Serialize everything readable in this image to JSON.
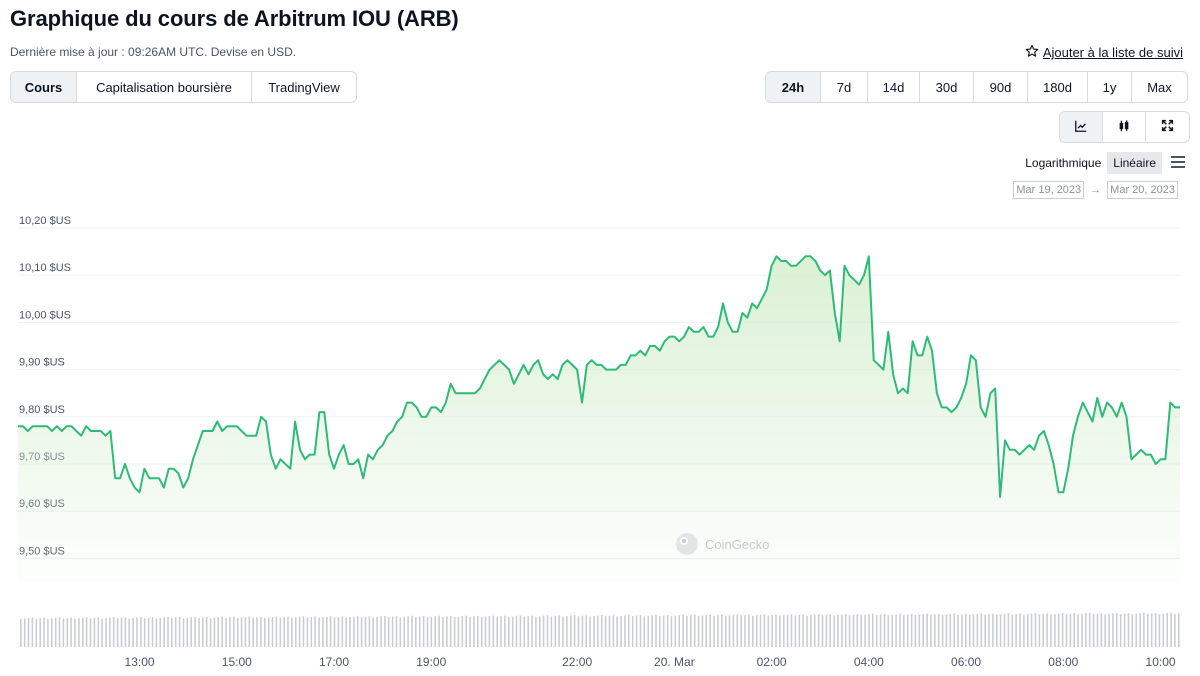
{
  "header": {
    "title": "Graphique du cours de Arbitrum IOU (ARB)",
    "subtitle": "Dernière mise à jour : 09:26AM UTC. Devise en USD.",
    "watchlist_label": "Ajouter à la liste de suivi",
    "watchlist_icon": "star-outline-icon"
  },
  "chart_tabs": [
    {
      "label": "Cours",
      "active": true
    },
    {
      "label": "Capitalisation boursière",
      "active": false
    },
    {
      "label": "TradingView",
      "active": false
    }
  ],
  "range_tabs": [
    {
      "label": "24h",
      "active": true
    },
    {
      "label": "7d",
      "active": false
    },
    {
      "label": "14d",
      "active": false
    },
    {
      "label": "30d",
      "active": false
    },
    {
      "label": "90d",
      "active": false
    },
    {
      "label": "180d",
      "active": false
    },
    {
      "label": "1y",
      "active": false
    },
    {
      "label": "Max",
      "active": false
    }
  ],
  "view_buttons": [
    {
      "icon": "line-chart-icon",
      "active": true
    },
    {
      "icon": "candlestick-icon",
      "active": false
    },
    {
      "icon": "expand-icon",
      "active": false
    }
  ],
  "scale": {
    "log_label": "Logarithmique",
    "linear_label": "Linéaire",
    "active": "linear",
    "menu_icon": "hamburger-menu-icon"
  },
  "date_range": {
    "from": "Mar 19, 2023",
    "arrow": "→",
    "to": "Mar 20, 2023"
  },
  "colors": {
    "line": "#2fba7a",
    "fill_top": "#d9f0d2",
    "volume": "#c9ced6",
    "grid": "#eef0f3"
  },
  "chart_data": {
    "type": "area",
    "watermark": "CoinGecko",
    "yticks": [
      "10,20 $US",
      "10,10 $US",
      "10,00 $US",
      "9,90 $US",
      "9,80 $US",
      "9,70 $US",
      "9,60 $US",
      "9,50 $US"
    ],
    "yvalues": [
      10.2,
      10.1,
      10.0,
      9.9,
      9.8,
      9.7,
      9.6,
      9.5
    ],
    "xticks": [
      {
        "label": "13:00",
        "h": 1.0
      },
      {
        "label": "15:00",
        "h": 3.0
      },
      {
        "label": "17:00",
        "h": 5.0
      },
      {
        "label": "19:00",
        "h": 7.0
      },
      {
        "label": "22:00",
        "h": 10.0
      },
      {
        "label": "20. Mar",
        "h": 12.0
      },
      {
        "label": "02:00",
        "h": 14.0
      },
      {
        "label": "04:00",
        "h": 16.0
      },
      {
        "label": "06:00",
        "h": 18.0
      },
      {
        "label": "08:00",
        "h": 20.0
      },
      {
        "label": "10:00",
        "h": 22.0
      }
    ],
    "xrange_hours": [
      -1.5,
      22.4
    ],
    "yrange": [
      9.45,
      10.2
    ],
    "price_hours": [
      -1.5,
      -1.4,
      -1.3,
      -1.2,
      -1.1,
      -1.0,
      -0.9,
      -0.8,
      -0.7,
      -0.6,
      -0.5,
      -0.4,
      -0.3,
      -0.2,
      -0.1,
      0.0,
      0.1,
      0.2,
      0.3,
      0.4,
      0.5,
      0.6,
      0.7,
      0.8,
      0.9,
      1.0,
      1.1,
      1.2,
      1.3,
      1.4,
      1.5,
      1.6,
      1.7,
      1.8,
      1.9,
      2.0,
      2.1,
      2.2,
      2.3,
      2.4,
      2.5,
      2.6,
      2.7,
      2.8,
      2.9,
      3.0,
      3.1,
      3.2,
      3.3,
      3.4,
      3.5,
      3.6,
      3.7,
      3.8,
      3.9,
      4.0,
      4.1,
      4.2,
      4.3,
      4.4,
      4.5,
      4.6,
      4.7,
      4.8,
      4.9,
      5.0,
      5.1,
      5.2,
      5.3,
      5.4,
      5.5,
      5.6,
      5.7,
      5.8,
      5.9,
      6.0,
      6.1,
      6.2,
      6.3,
      6.4,
      6.5,
      6.6,
      6.7,
      6.8,
      6.9,
      7.0,
      7.1,
      7.2,
      7.3,
      7.4,
      7.5,
      7.6,
      7.7,
      7.8,
      7.9,
      8.0,
      8.1,
      8.2,
      8.3,
      8.4,
      8.5,
      8.6,
      8.7,
      8.8,
      8.9,
      9.0,
      9.1,
      9.2,
      9.3,
      9.4,
      9.5,
      9.6,
      9.7,
      9.8,
      9.9,
      10.0,
      10.1,
      10.2,
      10.3,
      10.4,
      10.5,
      10.6,
      10.7,
      10.8,
      10.9,
      11.0,
      11.1,
      11.2,
      11.3,
      11.4,
      11.5,
      11.6,
      11.7,
      11.8,
      11.9,
      12.0,
      12.1,
      12.2,
      12.3,
      12.4,
      12.5,
      12.6,
      12.7,
      12.8,
      12.9,
      13.0,
      13.1,
      13.2,
      13.3,
      13.4,
      13.5,
      13.6,
      13.7,
      13.8,
      13.9,
      14.0,
      14.1,
      14.2,
      14.3,
      14.4,
      14.5,
      14.6,
      14.7,
      14.8,
      14.9,
      15.0,
      15.1,
      15.2,
      15.3,
      15.4,
      15.5,
      15.6,
      15.7,
      15.8,
      15.9,
      16.0,
      16.1,
      16.2,
      16.3,
      16.4,
      16.5,
      16.6,
      16.7,
      16.8,
      16.9,
      17.0,
      17.1,
      17.2,
      17.3,
      17.4,
      17.5,
      17.6,
      17.7,
      17.8,
      17.9,
      18.0,
      18.1,
      18.2,
      18.3,
      18.4,
      18.5,
      18.6,
      18.7,
      18.8,
      18.9,
      19.0,
      19.1,
      19.2,
      19.3,
      19.4,
      19.5,
      19.6,
      19.7,
      19.8,
      19.9,
      20.0,
      20.1,
      20.2,
      20.3,
      20.4,
      20.5,
      20.6,
      20.7,
      20.8,
      20.9,
      21.0,
      21.1,
      21.2,
      21.3,
      21.4,
      21.5,
      21.6,
      21.7,
      21.8,
      21.9,
      22.0,
      22.1,
      22.2,
      22.3,
      22.4
    ],
    "price_values": [
      9.78,
      9.78,
      9.77,
      9.78,
      9.78,
      9.78,
      9.78,
      9.77,
      9.78,
      9.77,
      9.78,
      9.78,
      9.77,
      9.76,
      9.78,
      9.77,
      9.77,
      9.77,
      9.76,
      9.77,
      9.67,
      9.67,
      9.7,
      9.67,
      9.65,
      9.64,
      9.69,
      9.67,
      9.67,
      9.67,
      9.65,
      9.69,
      9.69,
      9.68,
      9.65,
      9.67,
      9.71,
      9.74,
      9.77,
      9.77,
      9.77,
      9.79,
      9.77,
      9.78,
      9.78,
      9.78,
      9.77,
      9.76,
      9.76,
      9.76,
      9.8,
      9.79,
      9.72,
      9.69,
      9.71,
      9.7,
      9.69,
      9.79,
      9.73,
      9.71,
      9.72,
      9.72,
      9.81,
      9.81,
      9.72,
      9.69,
      9.72,
      9.74,
      9.7,
      9.7,
      9.71,
      9.67,
      9.72,
      9.71,
      9.73,
      9.74,
      9.76,
      9.77,
      9.79,
      9.8,
      9.83,
      9.83,
      9.82,
      9.8,
      9.8,
      9.82,
      9.82,
      9.81,
      9.83,
      9.87,
      9.85,
      9.85,
      9.85,
      9.85,
      9.85,
      9.86,
      9.88,
      9.9,
      9.91,
      9.92,
      9.91,
      9.9,
      9.87,
      9.89,
      9.91,
      9.89,
      9.91,
      9.92,
      9.89,
      9.88,
      9.89,
      9.88,
      9.91,
      9.92,
      9.91,
      9.9,
      9.83,
      9.91,
      9.92,
      9.91,
      9.91,
      9.9,
      9.9,
      9.9,
      9.91,
      9.91,
      9.93,
      9.93,
      9.94,
      9.93,
      9.95,
      9.95,
      9.94,
      9.96,
      9.97,
      9.97,
      9.96,
      9.97,
      9.99,
      9.98,
      9.98,
      9.99,
      9.97,
      9.97,
      9.99,
      10.04,
      10.0,
      9.98,
      9.98,
      10.02,
      10.01,
      10.04,
      10.03,
      10.05,
      10.07,
      10.12,
      10.14,
      10.13,
      10.13,
      10.12,
      10.12,
      10.13,
      10.14,
      10.14,
      10.13,
      10.11,
      10.1,
      10.11,
      10.02,
      9.96,
      10.12,
      10.1,
      10.09,
      10.08,
      10.1,
      10.14,
      9.92,
      9.91,
      9.9,
      9.98,
      9.89,
      9.85,
      9.86,
      9.85,
      9.96,
      9.93,
      9.93,
      9.97,
      9.94,
      9.85,
      9.82,
      9.82,
      9.81,
      9.82,
      9.84,
      9.87,
      9.93,
      9.92,
      9.82,
      9.8,
      9.85,
      9.86,
      9.63,
      9.75,
      9.73,
      9.73,
      9.72,
      9.73,
      9.74,
      9.73,
      9.76,
      9.77,
      9.74,
      9.7,
      9.64,
      9.64,
      9.69,
      9.76,
      9.8,
      9.83,
      9.81,
      9.79,
      9.84,
      9.8,
      9.83,
      9.82,
      9.8,
      9.83,
      9.8,
      9.71,
      9.72,
      9.73,
      9.72,
      9.72,
      9.7,
      9.71,
      9.71,
      9.83,
      9.82,
      9.82
    ],
    "volume": {
      "visible": true,
      "unlabeled": true
    }
  }
}
